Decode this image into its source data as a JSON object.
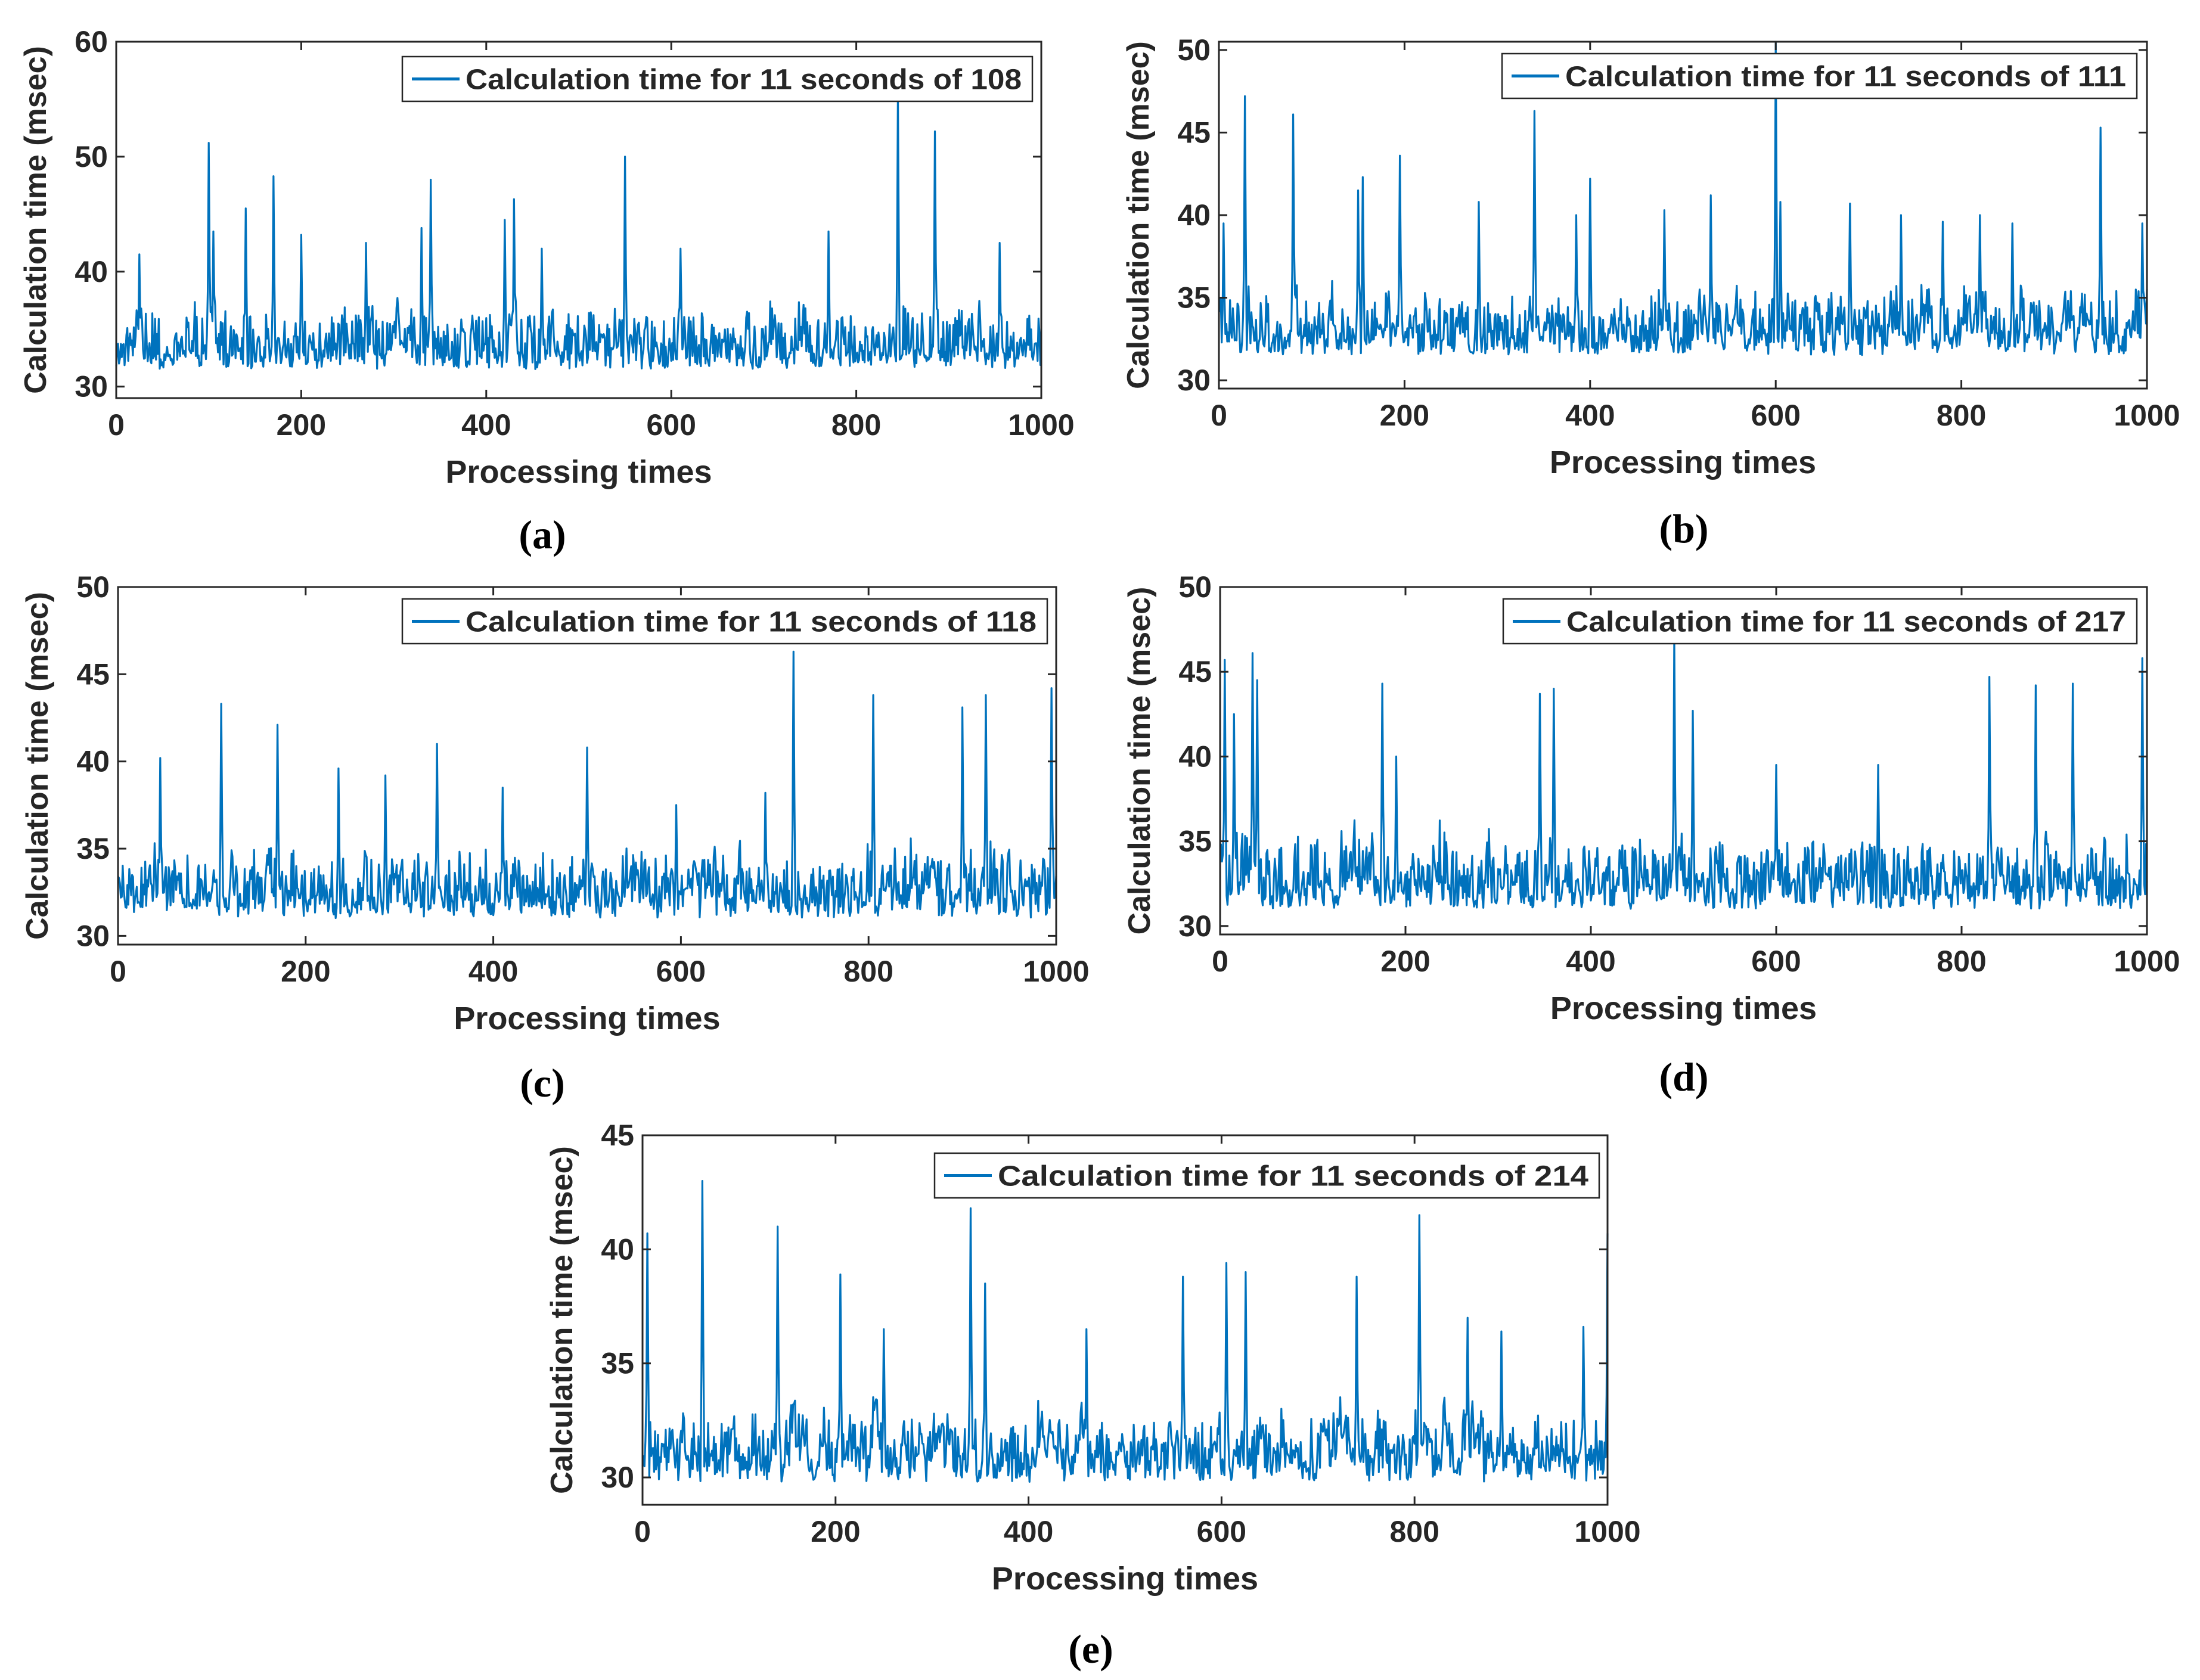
{
  "figure": {
    "panels": [
      {
        "caption": "(a)"
      },
      {
        "caption": "(b)"
      },
      {
        "caption": "(c)"
      },
      {
        "caption": "(d)"
      },
      {
        "caption": "(e)"
      }
    ]
  },
  "chart_data": [
    {
      "type": "line",
      "title": "",
      "xlabel": "Processing times",
      "ylabel": "Calculation time (msec)",
      "xlim": [
        0,
        1000
      ],
      "ylim": [
        29,
        60
      ],
      "xticks": [
        0,
        200,
        400,
        600,
        800,
        1000
      ],
      "yticks": [
        30,
        40,
        50,
        60
      ],
      "legend": {
        "label": "Calculation time for 11 seconds of 108",
        "placement": "top-right"
      },
      "series": [
        {
          "name": "Calculation time for 11 seconds of 108",
          "color": "#0072BD",
          "base": 31.5,
          "noise": 4.5,
          "floor": 29.6,
          "seed": 108,
          "spikes": [
            [
              25,
              41.5
            ],
            [
              100,
              51.2
            ],
            [
              105,
              43.5
            ],
            [
              140,
              45.5
            ],
            [
              170,
              48.3
            ],
            [
              200,
              43.2
            ],
            [
              270,
              42.5
            ],
            [
              330,
              43.8
            ],
            [
              340,
              48.0
            ],
            [
              420,
              44.5
            ],
            [
              430,
              46.3
            ],
            [
              460,
              42.0
            ],
            [
              550,
              50.0
            ],
            [
              610,
              42.0
            ],
            [
              770,
              43.5
            ],
            [
              845,
              55.5
            ],
            [
              885,
              52.2
            ],
            [
              955,
              42.5
            ]
          ]
        }
      ]
    },
    {
      "type": "line",
      "title": "",
      "xlabel": "Processing times",
      "ylabel": "Calculation time (msec)",
      "xlim": [
        0,
        1000
      ],
      "ylim": [
        29.5,
        50.5
      ],
      "xticks": [
        0,
        200,
        400,
        600,
        800,
        1000
      ],
      "yticks": [
        30,
        35,
        40,
        45,
        50
      ],
      "legend": {
        "label": "Calculation time for 11 seconds of 111",
        "placement": "top-right"
      },
      "series": [
        {
          "name": "Calculation time for 11 seconds of 111",
          "color": "#0072BD",
          "base": 31.5,
          "noise": 3.0,
          "floor": 30.0,
          "seed": 111,
          "spikes": [
            [
              5,
              39.5
            ],
            [
              28,
              47.2
            ],
            [
              80,
              46.1
            ],
            [
              150,
              41.5
            ],
            [
              155,
              42.3
            ],
            [
              195,
              43.6
            ],
            [
              280,
              40.8
            ],
            [
              340,
              46.3
            ],
            [
              385,
              40.0
            ],
            [
              400,
              42.2
            ],
            [
              480,
              40.3
            ],
            [
              530,
              41.2
            ],
            [
              600,
              50.5
            ],
            [
              605,
              40.8
            ],
            [
              680,
              40.7
            ],
            [
              735,
              40.0
            ],
            [
              780,
              39.6
            ],
            [
              820,
              40.0
            ],
            [
              855,
              39.5
            ],
            [
              950,
              45.3
            ],
            [
              995,
              39.5
            ]
          ]
        }
      ]
    },
    {
      "type": "line",
      "title": "",
      "xlabel": "Processing times",
      "ylabel": "Calculation time (msec)",
      "xlim": [
        0,
        1000
      ],
      "ylim": [
        29.5,
        50
      ],
      "xticks": [
        0,
        200,
        400,
        600,
        800,
        1000
      ],
      "yticks": [
        30,
        35,
        40,
        45,
        50
      ],
      "legend": {
        "label": "Calculation time for 11 seconds of 118",
        "placement": "top-right"
      },
      "series": [
        {
          "name": "Calculation time for 11 seconds of 118",
          "color": "#0072BD",
          "base": 31.0,
          "noise": 3.0,
          "floor": 30.0,
          "seed": 118,
          "spikes": [
            [
              45,
              40.2
            ],
            [
              110,
              43.3
            ],
            [
              170,
              42.1
            ],
            [
              235,
              39.6
            ],
            [
              285,
              39.2
            ],
            [
              340,
              41.0
            ],
            [
              410,
              38.5
            ],
            [
              500,
              40.8
            ],
            [
              595,
              37.5
            ],
            [
              690,
              38.2
            ],
            [
              720,
              46.3
            ],
            [
              805,
              43.8
            ],
            [
              900,
              43.1
            ],
            [
              925,
              43.8
            ],
            [
              995,
              44.2
            ]
          ]
        }
      ]
    },
    {
      "type": "line",
      "title": "",
      "xlabel": "Processing times",
      "ylabel": "Calculation time (msec)",
      "xlim": [
        0,
        1000
      ],
      "ylim": [
        29.5,
        50
      ],
      "xticks": [
        0,
        200,
        400,
        600,
        800,
        1000
      ],
      "yticks": [
        30,
        35,
        40,
        45,
        50
      ],
      "legend": {
        "label": "Calculation time for 11 seconds of 217",
        "placement": "top-right"
      },
      "series": [
        {
          "name": "Calculation time for 11 seconds of 217",
          "color": "#0072BD",
          "base": 31.0,
          "noise": 3.5,
          "floor": 29.8,
          "seed": 217,
          "spikes": [
            [
              5,
              45.7
            ],
            [
              15,
              42.5
            ],
            [
              35,
              46.1
            ],
            [
              40,
              44.5
            ],
            [
              175,
              44.3
            ],
            [
              190,
              40.0
            ],
            [
              345,
              43.7
            ],
            [
              360,
              44.0
            ],
            [
              490,
              47.0
            ],
            [
              510,
              42.7
            ],
            [
              600,
              39.5
            ],
            [
              710,
              39.5
            ],
            [
              830,
              44.7
            ],
            [
              880,
              44.2
            ],
            [
              920,
              44.3
            ],
            [
              995,
              45.8
            ]
          ]
        }
      ]
    },
    {
      "type": "line",
      "title": "",
      "xlabel": "Processing times",
      "ylabel": "Calculation time (msec)",
      "xlim": [
        0,
        1000
      ],
      "ylim": [
        28.8,
        45
      ],
      "xticks": [
        0,
        200,
        400,
        600,
        800,
        1000
      ],
      "yticks": [
        30,
        35,
        40,
        45
      ],
      "legend": {
        "label": "Calculation time for 11 seconds of 214",
        "placement": "top-right"
      },
      "series": [
        {
          "name": "Calculation time for 11 seconds of 214",
          "color": "#0072BD",
          "base": 29.8,
          "noise": 2.2,
          "floor": 29.0,
          "seed": 214,
          "spikes": [
            [
              5,
              40.7
            ],
            [
              62,
              43.0
            ],
            [
              140,
              41.0
            ],
            [
              205,
              38.9
            ],
            [
              250,
              36.5
            ],
            [
              340,
              41.8
            ],
            [
              355,
              38.5
            ],
            [
              460,
              36.5
            ],
            [
              560,
              38.8
            ],
            [
              605,
              39.4
            ],
            [
              625,
              39.0
            ],
            [
              740,
              38.8
            ],
            [
              805,
              41.5
            ],
            [
              855,
              37.0
            ],
            [
              890,
              36.4
            ],
            [
              975,
              36.6
            ],
            [
              1000,
              40.7
            ]
          ]
        }
      ]
    }
  ]
}
